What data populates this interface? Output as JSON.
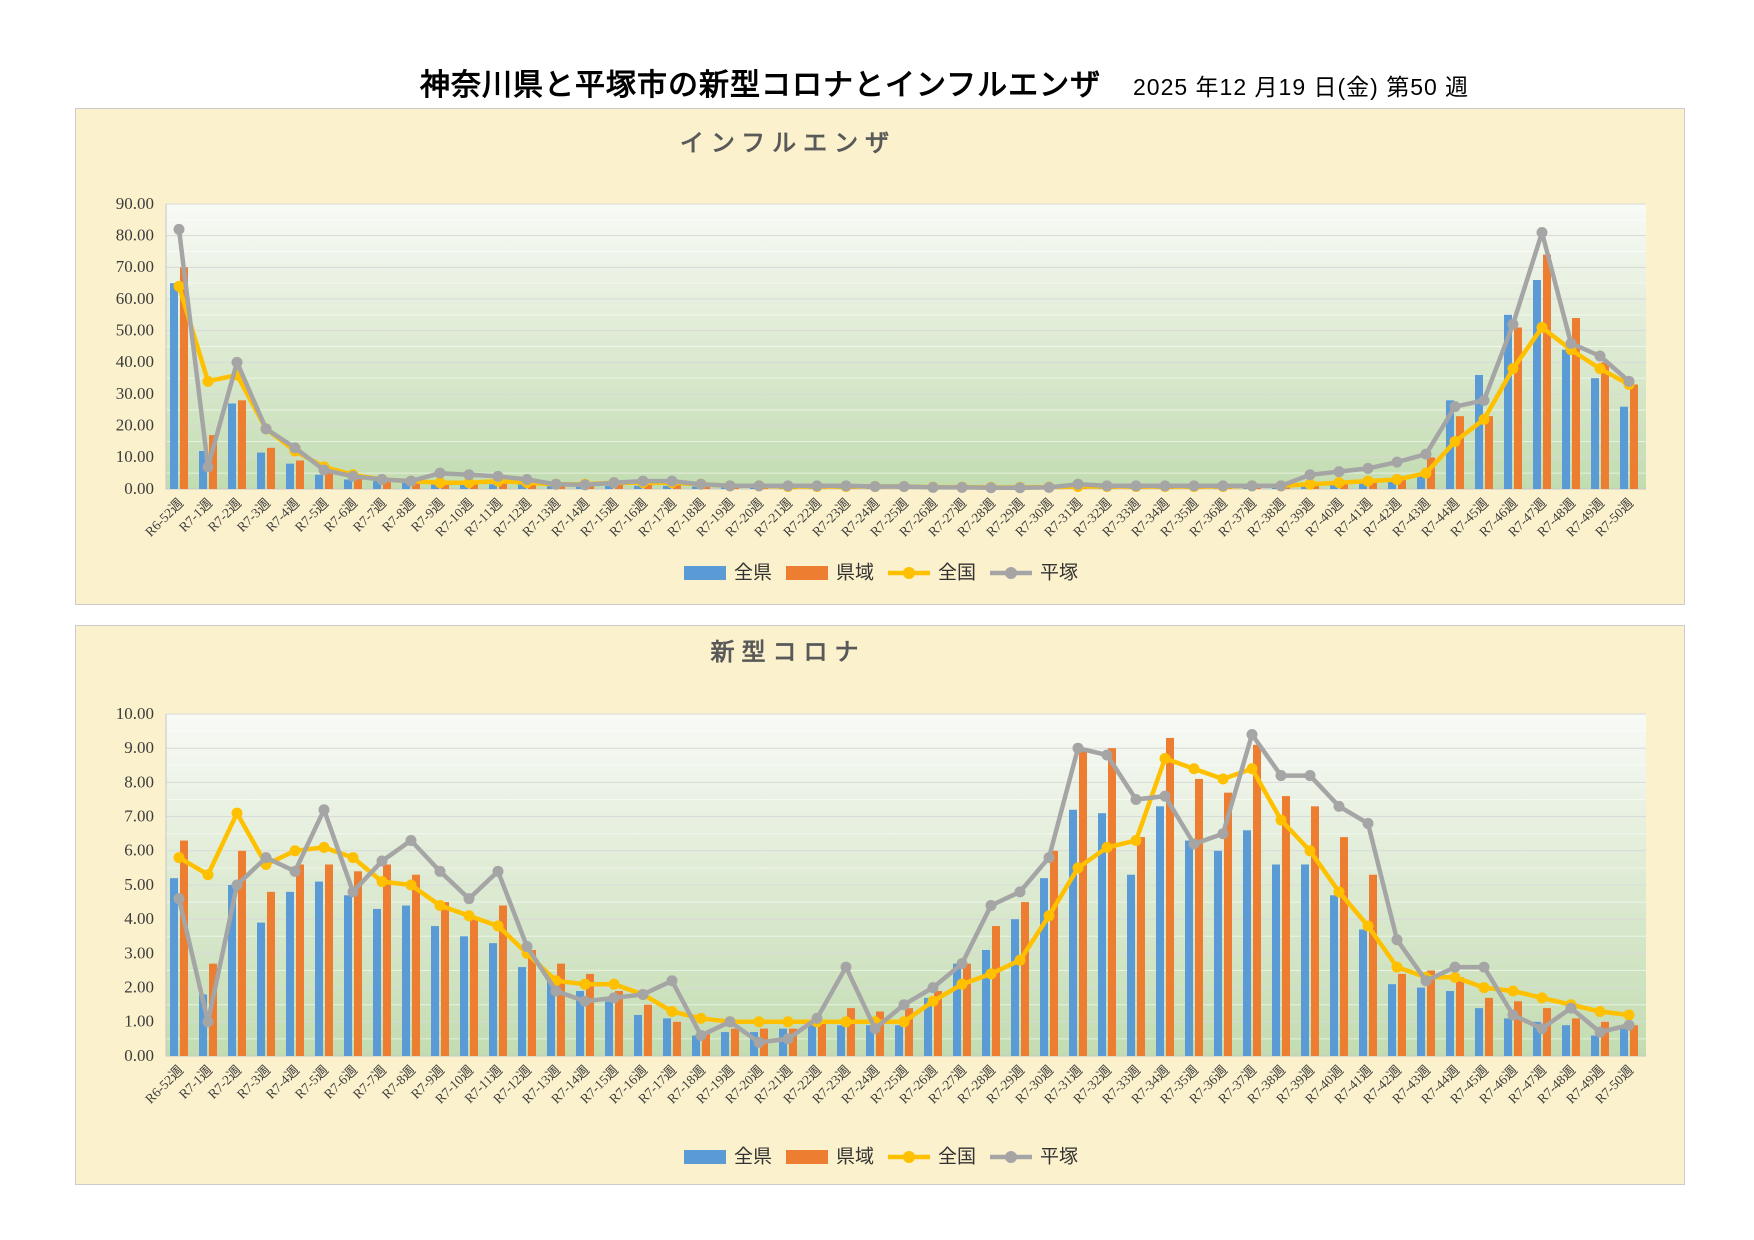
{
  "page": {
    "title": "神奈川県と平塚市の新型コロナとインフルエンザ",
    "date": "2025 年12 月19 日(金) 第50 週"
  },
  "colors": {
    "zenken_blue": "#5B9BD5",
    "keniki_orange": "#ED7D31",
    "zenkoku_yellow": "#FFC000",
    "hiratsuka_gray": "#A5A5A5",
    "panel_cream": "#FBF1CD",
    "grid_gray": "#d9d9d9",
    "title_gray": "#595959"
  },
  "chart_data": [
    {
      "id": "influenza",
      "type": "bar",
      "title": "インフルエンザ",
      "ylim": [
        0,
        90
      ],
      "ytick_step": 10,
      "y_tick_labels": [
        "0.00",
        "10.00",
        "20.00",
        "30.00",
        "40.00",
        "50.00",
        "60.00",
        "70.00",
        "80.00",
        "90.00"
      ],
      "grid": true,
      "legend_position": "bottom",
      "categories": [
        "R6-52週",
        "R7-1週",
        "R7-2週",
        "R7-3週",
        "R7-4週",
        "R7-5週",
        "R7-6週",
        "R7-7週",
        "R7-8週",
        "R7-9週",
        "R7-10週",
        "R7-11週",
        "R7-12週",
        "R7-13週",
        "R7-14週",
        "R7-15週",
        "R7-16週",
        "R7-17週",
        "R7-18週",
        "R7-19週",
        "R7-20週",
        "R7-21週",
        "R7-22週",
        "R7-23週",
        "R7-24週",
        "R7-25週",
        "R7-26週",
        "R7-27週",
        "R7-28週",
        "R7-29週",
        "R7-30週",
        "R7-31週",
        "R7-32週",
        "R7-33週",
        "R7-34週",
        "R7-35週",
        "R7-36週",
        "R7-37週",
        "R7-38週",
        "R7-39週",
        "R7-40週",
        "R7-41週",
        "R7-42週",
        "R7-43週",
        "R7-44週",
        "R7-45週",
        "R7-46週",
        "R7-47週",
        "R7-48週",
        "R7-49週",
        "R7-50週"
      ],
      "series": [
        {
          "name": "全県",
          "type": "bar",
          "color": "#5B9BD5",
          "values": [
            65,
            12,
            27,
            11.5,
            8,
            4.5,
            3,
            2.5,
            2,
            1.5,
            1.5,
            1.5,
            1.5,
            1,
            1,
            1,
            1,
            1,
            0.8,
            0.6,
            0.5,
            0.5,
            0.5,
            0.5,
            0.4,
            0.4,
            0.3,
            0.3,
            0.3,
            0.3,
            0.4,
            0.5,
            0.5,
            0.5,
            0.5,
            0.5,
            0.5,
            0.5,
            0.6,
            1,
            1.5,
            2,
            3,
            5,
            28,
            36,
            55,
            66,
            44,
            35,
            26
          ]
        },
        {
          "name": "県域",
          "type": "bar",
          "color": "#ED7D31",
          "values": [
            70,
            17,
            28,
            13,
            9,
            5,
            3.5,
            3,
            2.5,
            2,
            2,
            2,
            2,
            1.5,
            1,
            1.5,
            1.5,
            1.5,
            1,
            0.8,
            0.8,
            0.8,
            0.8,
            0.8,
            0.6,
            0.6,
            0.5,
            0.5,
            0.5,
            0.5,
            0.6,
            0.8,
            0.8,
            0.8,
            0.8,
            0.8,
            0.8,
            0.8,
            1,
            1.5,
            2,
            2.5,
            4,
            10,
            23,
            23,
            51,
            74,
            54,
            40,
            33
          ]
        },
        {
          "name": "全国",
          "type": "line",
          "color": "#FFC000",
          "values": [
            64,
            34,
            36,
            19,
            12,
            7,
            4.5,
            3,
            2.5,
            2,
            2,
            2.5,
            2,
            1.5,
            1.5,
            2,
            2,
            2,
            1.5,
            1,
            1,
            0.8,
            0.8,
            0.8,
            0.8,
            0.8,
            0.6,
            0.6,
            0.5,
            0.5,
            0.6,
            0.8,
            0.8,
            0.8,
            0.8,
            0.8,
            0.8,
            1,
            1,
            1.5,
            2,
            2.5,
            3,
            5,
            15,
            22,
            38,
            51,
            44,
            38,
            33
          ]
        },
        {
          "name": "平塚",
          "type": "line",
          "color": "#A5A5A5",
          "values": [
            82,
            7,
            40,
            19,
            13,
            6,
            4,
            3,
            2.5,
            5,
            4.5,
            4,
            3,
            1.5,
            1.3,
            2,
            2.5,
            2.5,
            1.5,
            1,
            1,
            1,
            1,
            1,
            0.8,
            0.8,
            0.5,
            0.5,
            0.4,
            0.4,
            0.5,
            1.5,
            1,
            1,
            1,
            1,
            1,
            1,
            1,
            4.5,
            5.5,
            6.5,
            8.5,
            11,
            26,
            28,
            52,
            81,
            46,
            42,
            34
          ]
        }
      ]
    },
    {
      "id": "covid",
      "type": "bar",
      "title": "新型コロナ",
      "ylim": [
        0,
        10
      ],
      "ytick_step": 1,
      "y_tick_labels": [
        "0.00",
        "1.00",
        "2.00",
        "3.00",
        "4.00",
        "5.00",
        "6.00",
        "7.00",
        "8.00",
        "9.00",
        "10.00"
      ],
      "grid": true,
      "legend_position": "bottom",
      "categories": [
        "R6-52週",
        "R7-1週",
        "R7-2週",
        "R7-3週",
        "R7-4週",
        "R7-5週",
        "R7-6週",
        "R7-7週",
        "R7-8週",
        "R7-9週",
        "R7-10週",
        "R7-11週",
        "R7-12週",
        "R7-13週",
        "R7-14週",
        "R7-15週",
        "R7-16週",
        "R7-17週",
        "R7-18週",
        "R7-19週",
        "R7-20週",
        "R7-21週",
        "R7-22週",
        "R7-23週",
        "R7-24週",
        "R7-25週",
        "R7-26週",
        "R7-27週",
        "R7-28週",
        "R7-29週",
        "R7-30週",
        "R7-31週",
        "R7-32週",
        "R7-33週",
        "R7-34週",
        "R7-35週",
        "R7-36週",
        "R7-37週",
        "R7-38週",
        "R7-39週",
        "R7-40週",
        "R7-41週",
        "R7-42週",
        "R7-43週",
        "R7-44週",
        "R7-45週",
        "R7-46週",
        "R7-47週",
        "R7-48週",
        "R7-49週",
        "R7-50週"
      ],
      "series": [
        {
          "name": "全県",
          "type": "bar",
          "color": "#5B9BD5",
          "values": [
            5.2,
            1.8,
            5.0,
            3.9,
            4.8,
            5.1,
            4.7,
            4.3,
            4.4,
            3.8,
            3.5,
            3.3,
            2.6,
            2.3,
            1.9,
            1.6,
            1.2,
            1.1,
            0.6,
            0.7,
            0.7,
            0.8,
            0.9,
            0.9,
            0.9,
            0.9,
            1.7,
            2.7,
            3.1,
            4.0,
            5.2,
            7.2,
            7.1,
            5.3,
            7.3,
            6.3,
            6.0,
            6.6,
            5.6,
            5.6,
            4.7,
            3.7,
            2.1,
            2.0,
            1.9,
            1.4,
            1.1,
            1.0,
            0.9,
            0.6,
            0.8
          ]
        },
        {
          "name": "県域",
          "type": "bar",
          "color": "#ED7D31",
          "values": [
            6.3,
            2.7,
            6.0,
            4.8,
            5.6,
            5.6,
            5.4,
            5.6,
            5.3,
            4.5,
            4.0,
            4.4,
            3.1,
            2.7,
            2.4,
            1.9,
            1.5,
            1.0,
            0.7,
            0.8,
            0.8,
            0.8,
            1.0,
            1.4,
            1.3,
            1.4,
            1.9,
            2.7,
            3.8,
            4.5,
            6.0,
            9.0,
            9.0,
            6.4,
            9.3,
            8.1,
            7.7,
            9.1,
            7.6,
            7.3,
            6.4,
            5.3,
            2.4,
            2.5,
            2.3,
            1.7,
            1.6,
            1.4,
            1.1,
            1.0,
            0.9
          ]
        },
        {
          "name": "全国",
          "type": "line",
          "color": "#FFC000",
          "values": [
            5.8,
            5.3,
            7.1,
            5.6,
            6.0,
            6.1,
            5.8,
            5.1,
            5.0,
            4.4,
            4.1,
            3.8,
            3.0,
            2.2,
            2.1,
            2.1,
            1.8,
            1.3,
            1.1,
            1.0,
            1.0,
            1.0,
            1.0,
            1.0,
            1.0,
            1.0,
            1.6,
            2.1,
            2.4,
            2.8,
            4.1,
            5.5,
            6.1,
            6.3,
            8.7,
            8.4,
            8.1,
            8.4,
            6.9,
            6.0,
            4.8,
            3.8,
            2.6,
            2.3,
            2.3,
            2.0,
            1.9,
            1.7,
            1.5,
            1.3,
            1.2
          ]
        },
        {
          "name": "平塚",
          "type": "line",
          "color": "#A5A5A5",
          "values": [
            4.6,
            1.0,
            5.0,
            5.8,
            5.4,
            7.2,
            4.8,
            5.7,
            6.3,
            5.4,
            4.6,
            5.4,
            3.2,
            1.9,
            1.6,
            1.7,
            1.8,
            2.2,
            0.6,
            1.0,
            0.4,
            0.5,
            1.1,
            2.6,
            0.8,
            1.5,
            2.0,
            2.7,
            4.4,
            4.8,
            5.8,
            9.0,
            8.8,
            7.5,
            7.6,
            6.2,
            6.5,
            9.4,
            8.2,
            8.2,
            7.3,
            6.8,
            3.4,
            2.2,
            2.6,
            2.6,
            1.2,
            0.8,
            1.4,
            0.7,
            0.9
          ]
        }
      ]
    }
  ]
}
